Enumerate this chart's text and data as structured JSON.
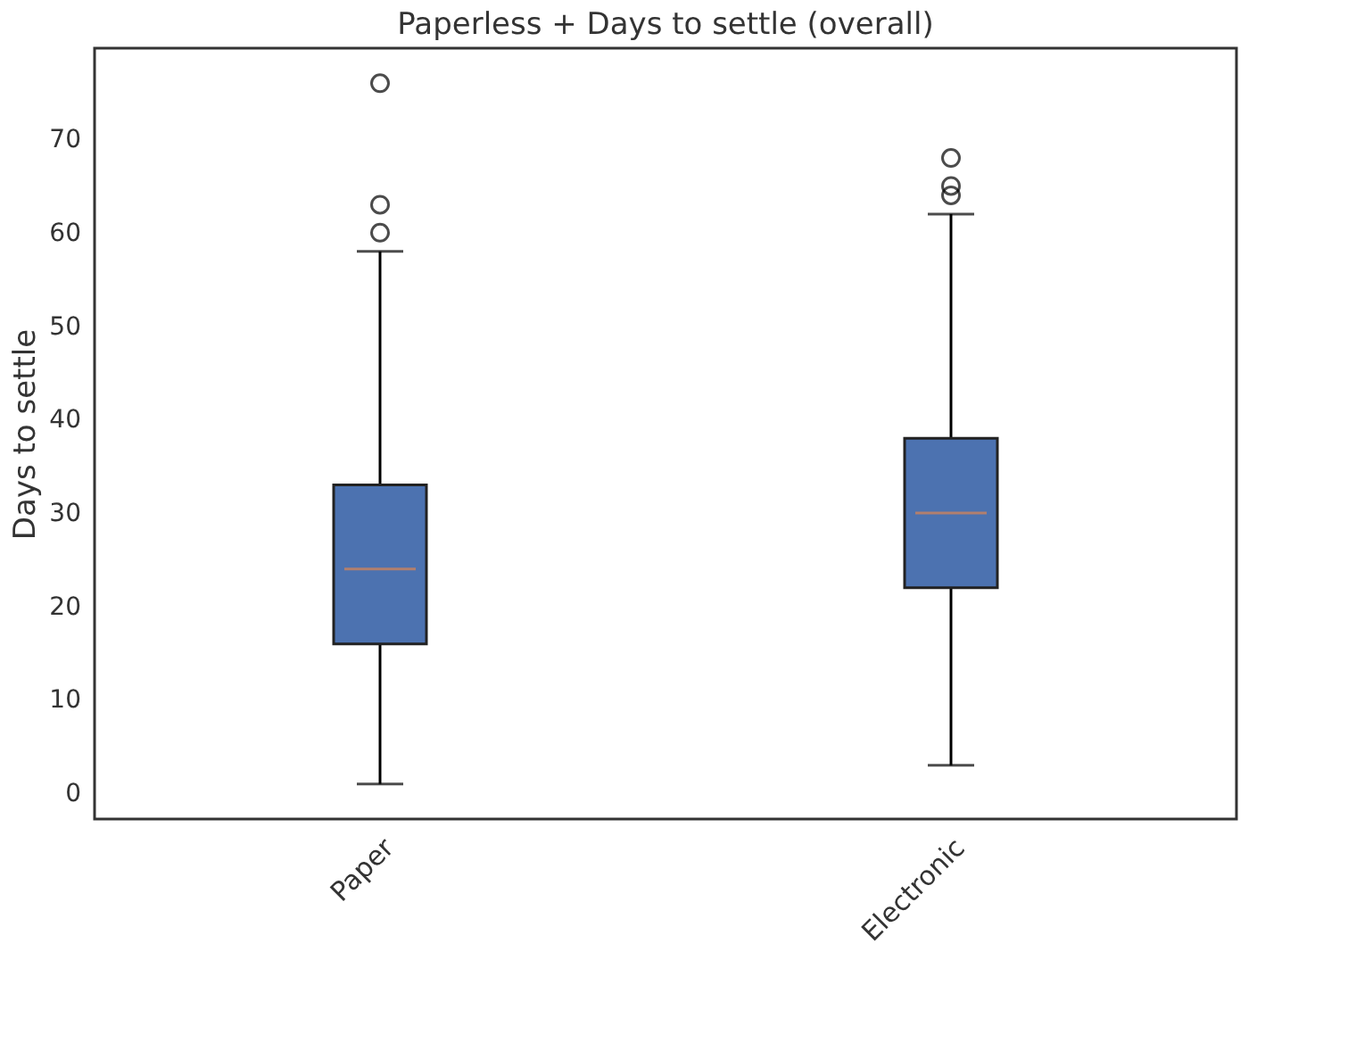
{
  "chart_data": {
    "type": "box",
    "title": "Paperless + Days to settle (overall)",
    "ylabel": "Days to settle",
    "categories": [
      "Paper",
      "Electronic"
    ],
    "series": [
      {
        "color": "#4c72b0",
        "boxes": [
          {
            "low": 1,
            "q1": 16,
            "median": 24,
            "q3": 33,
            "high": 58,
            "outliers": [
              60,
              63,
              76
            ]
          },
          {
            "low": 3,
            "q1": 22,
            "median": 30,
            "q3": 38,
            "high": 62,
            "outliers": [
              64,
              65,
              68
            ]
          }
        ]
      }
    ],
    "ylim": [
      -2.75,
      79.75
    ],
    "yticks": [
      0,
      10,
      20,
      30,
      40,
      50,
      60,
      70
    ],
    "grid": false
  }
}
